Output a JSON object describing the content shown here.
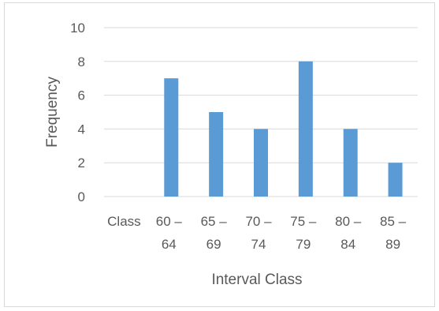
{
  "chart_data": {
    "type": "bar",
    "categories": [
      "Class",
      "60 – 64",
      "65 – 69",
      "70 – 74",
      "75 – 79",
      "80 – 84",
      "85 – 89"
    ],
    "category_lines": [
      [
        "Class"
      ],
      [
        "60 –",
        "64"
      ],
      [
        "65 –",
        "69"
      ],
      [
        "70 –",
        "74"
      ],
      [
        "75 –",
        "79"
      ],
      [
        "80 –",
        "84"
      ],
      [
        "85 –",
        "89"
      ]
    ],
    "values": [
      null,
      7,
      5,
      4,
      8,
      4,
      2
    ],
    "title": "",
    "xlabel": "Interval Class",
    "ylabel": "Frequency",
    "ylim": [
      0,
      10
    ],
    "yticks": [
      0,
      2,
      4,
      6,
      8,
      10
    ],
    "grid": true,
    "legend": "none",
    "colors": {
      "bar": "#5b9bd5",
      "grid": "#d9d9d9",
      "text": "#595959"
    }
  }
}
